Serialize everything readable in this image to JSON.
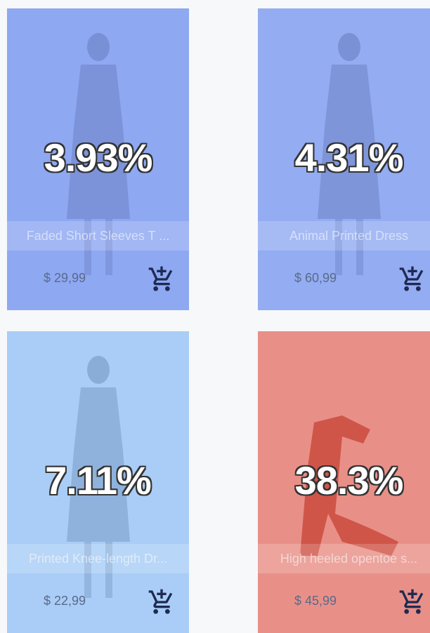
{
  "products": [
    {
      "name": "Faded Short Sleeves T ...",
      "price": "$ 29,99",
      "share": "3.93%"
    },
    {
      "name": "Animal Printed Dress",
      "price": "$ 60,99",
      "share": "4.31%"
    },
    {
      "name": "Printed Knee-length Dr...",
      "price": "$ 22,99",
      "share": "7.11%"
    },
    {
      "name": "High heeled opentoe s...",
      "price": "$ 45,99",
      "share": "38.3%"
    }
  ]
}
